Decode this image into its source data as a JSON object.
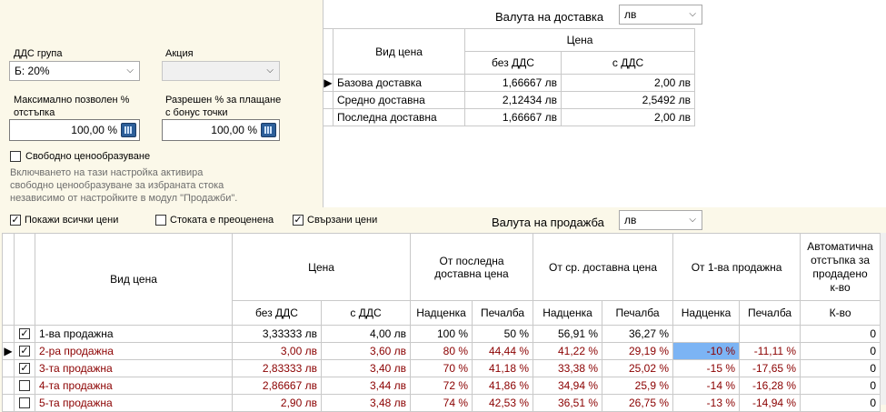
{
  "delivery_currency": {
    "label": "Валута на доставка",
    "value": "лв"
  },
  "left": {
    "vat_group": {
      "label": "ДДС група",
      "value": "Б: 20%"
    },
    "promo": {
      "label": "Акция",
      "value": ""
    },
    "max_discount": {
      "label_line1": "Максимално позволен %",
      "label_line2": "отстъпка",
      "value": "100,00 %"
    },
    "bonus_pct": {
      "label_line1": "Разрешен % за плащане",
      "label_line2": "с бонус точки",
      "value": "100,00 %"
    },
    "free_pricing": {
      "label": "Свободно ценообразуване",
      "checked": false
    },
    "note_lines": [
      "Включването на тази настройка активира",
      "свободно ценообразуване за избраната стока",
      "независимо от настройките в модул \"Продажби\"."
    ]
  },
  "delivery_table": {
    "headers": {
      "type": "Вид цена",
      "price": "Цена",
      "no_vat": "без ДДС",
      "with_vat": "с ДДС"
    },
    "rows": [
      {
        "name": "Базова доставка",
        "no_vat": "1,66667 лв",
        "with_vat": "2,00 лв",
        "current": true
      },
      {
        "name": "Средно доставна",
        "no_vat": "2,12434 лв",
        "with_vat": "2,5492 лв",
        "current": false
      },
      {
        "name": "Последна доставна",
        "no_vat": "1,66667 лв",
        "with_vat": "2,00 лв",
        "current": false
      }
    ]
  },
  "options": {
    "show_all": {
      "label": "Покажи всички цени",
      "checked": true
    },
    "overpriced": {
      "label": "Стоката е преоценена",
      "checked": false
    },
    "linked": {
      "label": "Свързани цени",
      "checked": true
    }
  },
  "sale_currency": {
    "label": "Валута на продажба",
    "value": "лв"
  },
  "sales_table": {
    "headers": {
      "type": "Вид цена",
      "price": "Цена",
      "from_last_line1": "От последна",
      "from_last_line2": "доставна цена",
      "from_avg": "От ср. доставна цена",
      "from_first": "От 1-ва продажна",
      "auto_line1": "Автоматична",
      "auto_line2": "отстъпка за",
      "auto_line3": "продадено",
      "auto_line4": "к-во",
      "no_vat": "без ДДС",
      "with_vat": "с ДДС",
      "markup": "Надценка",
      "margin": "Печалба",
      "qty": "К-во"
    },
    "rows": [
      {
        "checked": true,
        "name": "1-ва продажна",
        "no_vat": "3,33333 лв",
        "with_vat": "4,00 лв",
        "last_markup": "100 %",
        "last_margin": "50 %",
        "avg_markup": "56,91 %",
        "avg_margin": "36,27 %",
        "first_markup": "",
        "first_margin": "",
        "qty": "0"
      },
      {
        "checked": true,
        "name": "2-ра продажна",
        "no_vat": "3,00 лв",
        "with_vat": "3,60 лв",
        "last_markup": "80 %",
        "last_margin": "44,44 %",
        "avg_markup": "41,22 %",
        "avg_margin": "29,19 %",
        "first_markup": "-10 %",
        "first_margin": "-11,11 %",
        "qty": "0"
      },
      {
        "checked": true,
        "name": "3-та продажна",
        "no_vat": "2,83333 лв",
        "with_vat": "3,40 лв",
        "last_markup": "70 %",
        "last_margin": "41,18 %",
        "avg_markup": "33,38 %",
        "avg_margin": "25,02 %",
        "first_markup": "-15 %",
        "first_margin": "-17,65 %",
        "qty": "0"
      },
      {
        "checked": false,
        "name": "4-та продажна",
        "no_vat": "2,86667 лв",
        "with_vat": "3,44 лв",
        "last_markup": "72 %",
        "last_margin": "41,86 %",
        "avg_markup": "34,94 %",
        "avg_margin": "25,9 %",
        "first_markup": "-14 %",
        "first_margin": "-16,28 %",
        "qty": "0"
      },
      {
        "checked": false,
        "name": "5-та продажна",
        "no_vat": "2,90 лв",
        "with_vat": "3,48 лв",
        "last_markup": "74 %",
        "last_margin": "42,53 %",
        "avg_markup": "36,51 %",
        "avg_margin": "26,75 %",
        "first_markup": "-13 %",
        "first_margin": "-14,94 %",
        "qty": "0"
      }
    ]
  },
  "colors": {
    "panel_bg": "#fbf8e9",
    "negative_text": "#8b0000",
    "selection": "#7cb4f4"
  }
}
